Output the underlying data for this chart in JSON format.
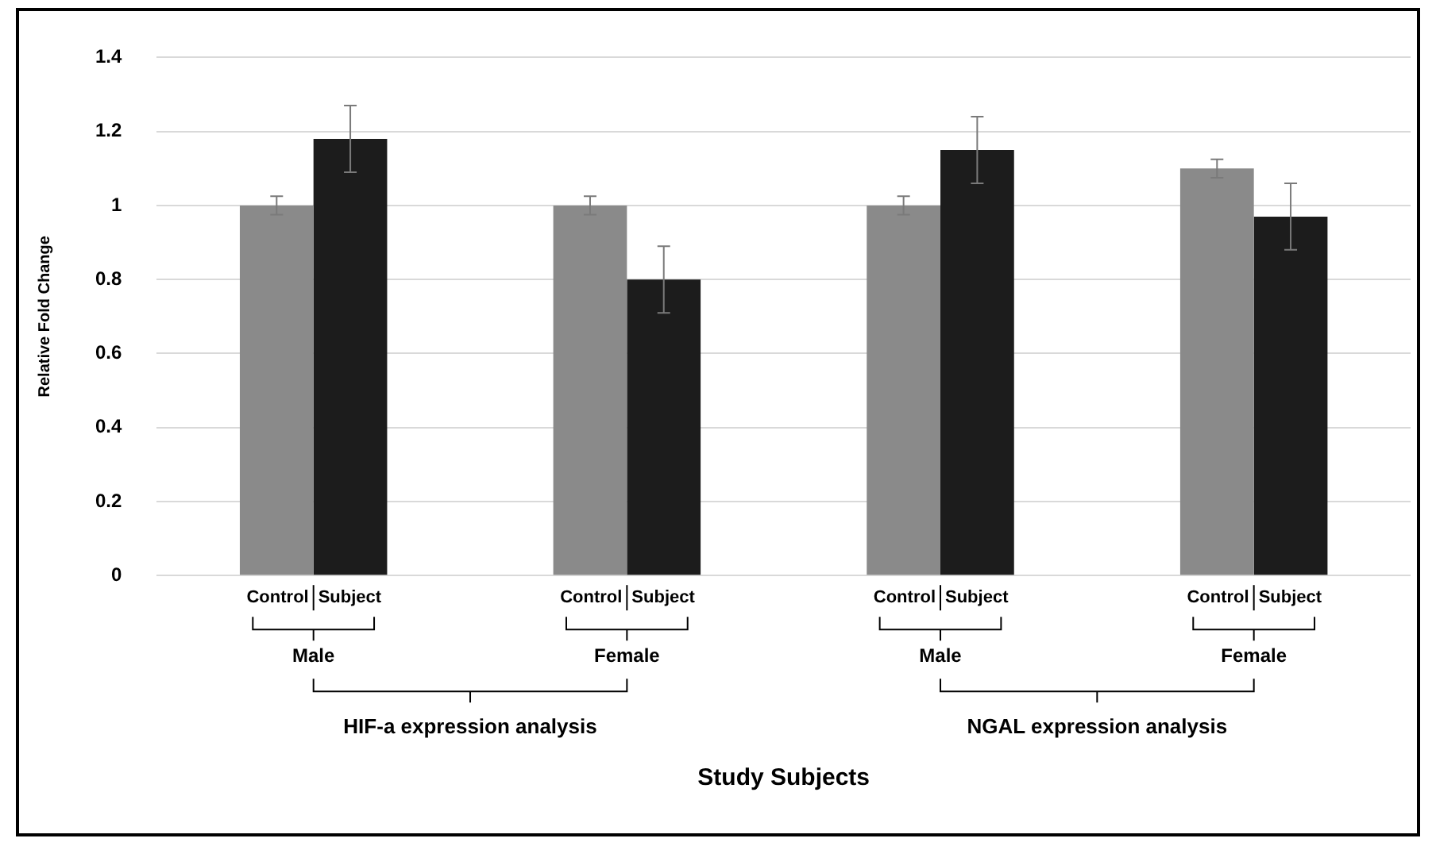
{
  "chart_data": {
    "type": "bar",
    "ylabel": "Relative Fold Change",
    "categories": [
      "Male",
      "Female",
      "Male",
      "Female"
    ],
    "series": [
      {
        "name": "Control",
        "color": "#8a8a8a",
        "values": [
          1.0,
          1.0,
          1.0,
          1.1
        ],
        "errors": [
          0.025,
          0.025,
          0.025,
          0.025
        ]
      },
      {
        "name": "Subject",
        "color": "#1c1c1c",
        "values": [
          1.18,
          0.8,
          1.15,
          0.97
        ],
        "errors": [
          0.09,
          0.09,
          0.09,
          0.09
        ]
      }
    ],
    "annotations": [
      "HIF-a expression analysis",
      "NGAL expression analysis",
      "Study Subjects"
    ],
    "ylim": [
      0,
      1.4
    ],
    "yticks": [
      0,
      0.2,
      0.4,
      0.6,
      0.8,
      1,
      1.2,
      1.4
    ],
    "grid": "y",
    "legend": false
  }
}
